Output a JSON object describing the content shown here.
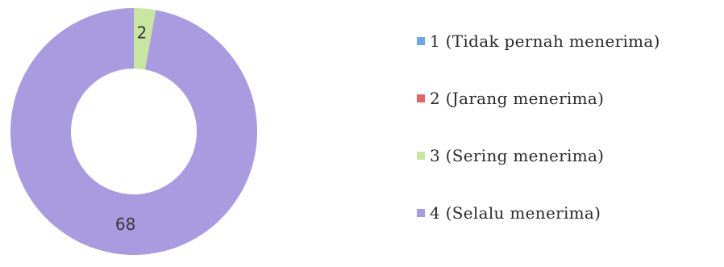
{
  "chart_data": {
    "type": "pie",
    "donut": true,
    "categories": [
      "1 (Tidak pernah menerima)",
      "2 (Jarang menerima)",
      "3 (Sering menerima)",
      "4 (Selalu menerima)"
    ],
    "values": [
      0,
      0,
      2,
      68
    ],
    "data_labels": [
      "",
      "",
      "2",
      "68"
    ],
    "colors": [
      "#6fa8dc",
      "#e06666",
      "#c9e5a2",
      "#a89be0"
    ],
    "legend_position": "right"
  }
}
